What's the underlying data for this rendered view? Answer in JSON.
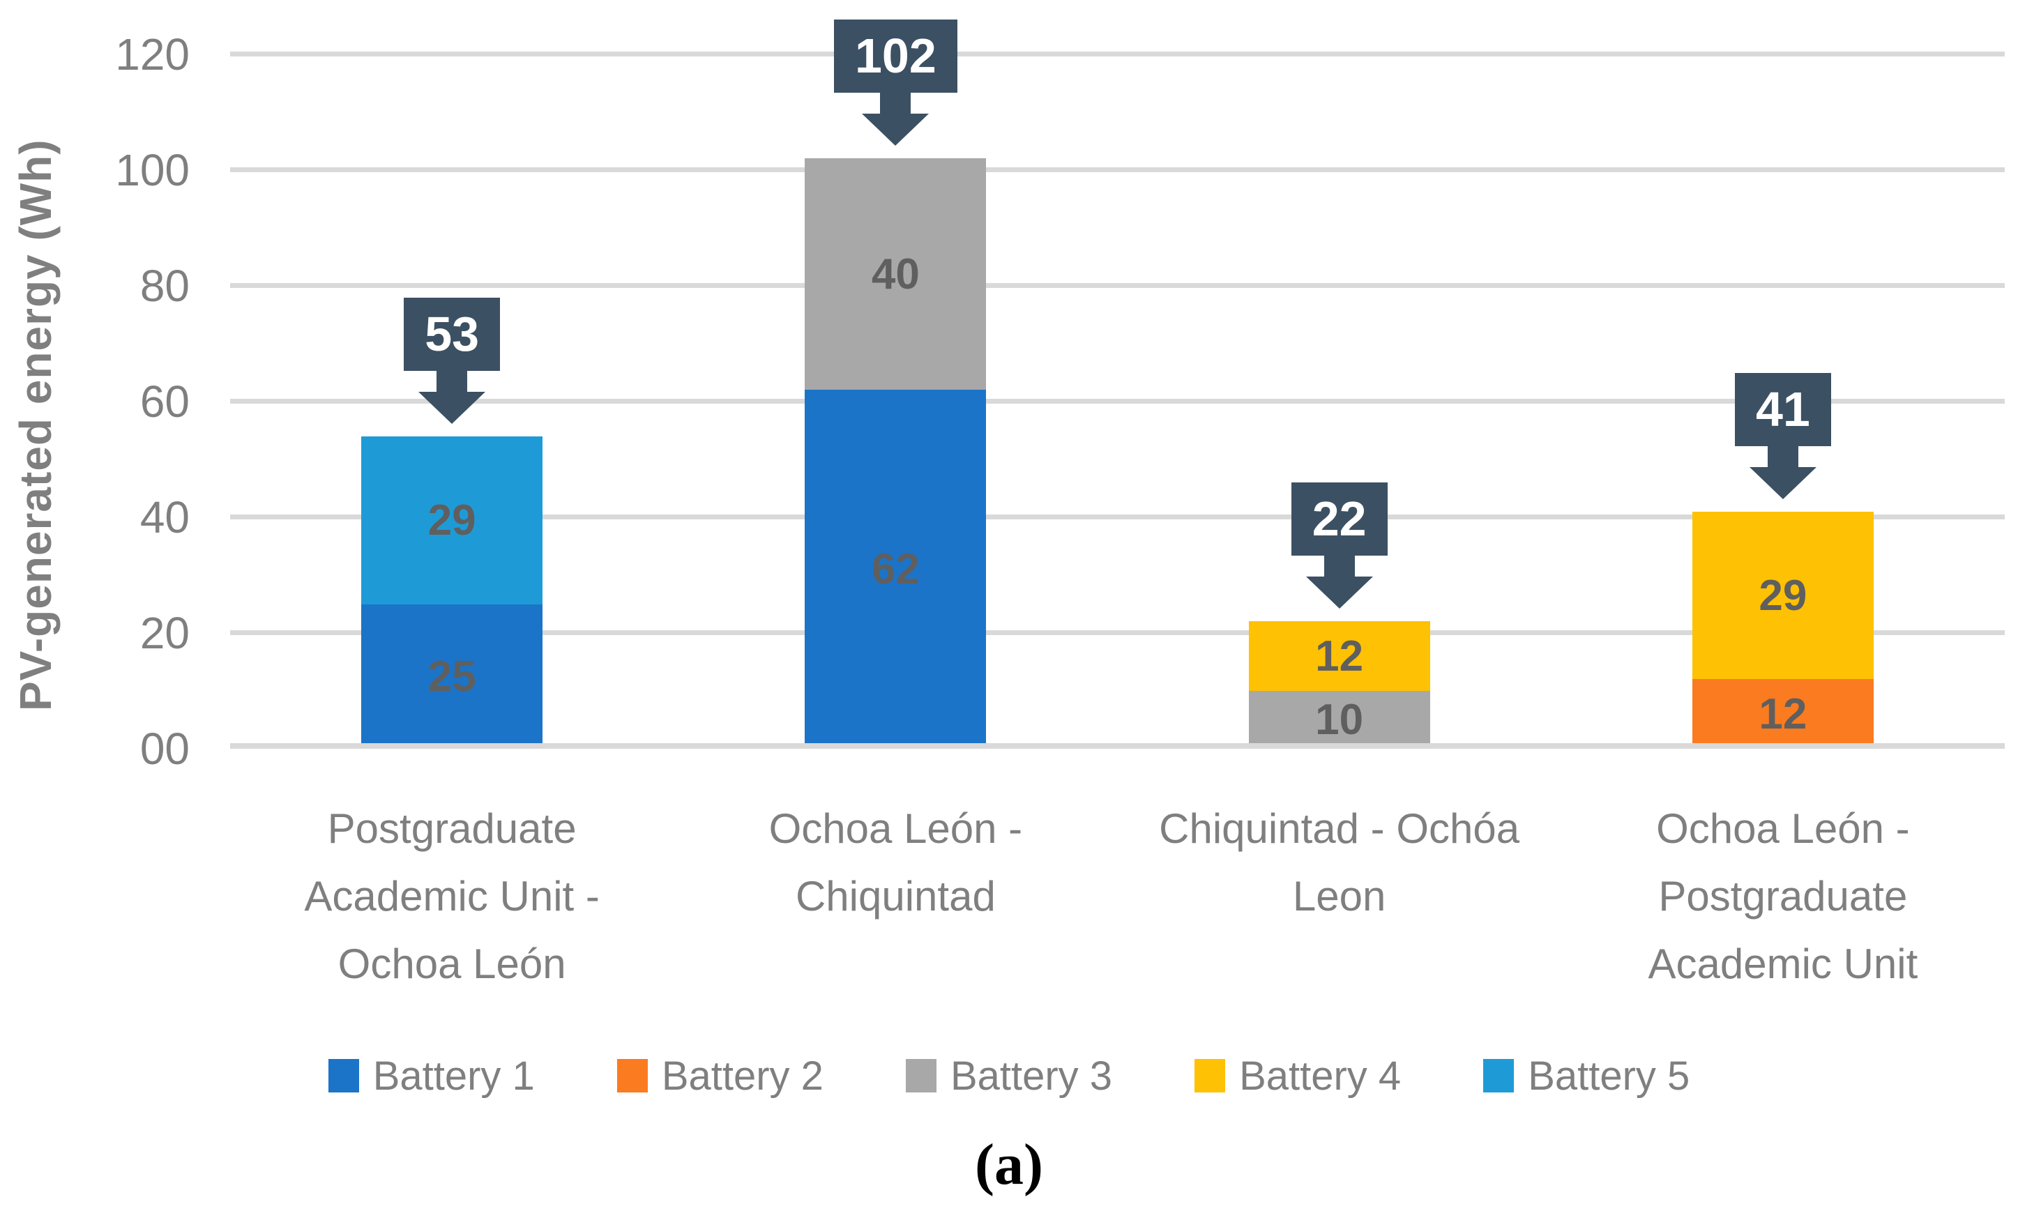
{
  "figure": {
    "caption": "(a)"
  },
  "chart_data": {
    "type": "bar",
    "stacked": true,
    "title": "",
    "xlabel": "",
    "ylabel": "PV-generated energy (Wh)",
    "ylim": [
      0,
      120
    ],
    "grid": true,
    "legend_position": "bottom",
    "y_axis": {
      "tick_values": [
        0,
        20,
        40,
        60,
        80,
        100,
        120
      ],
      "tick_labels": [
        "00",
        "20",
        "40",
        "60",
        "80",
        "100",
        "120"
      ]
    },
    "categories": [
      "Postgraduate Academic Unit - Ochoa León",
      "Ochoa León - Chiquintad",
      "Chiquintad - Ochóa Leon",
      "Ochoa León - Postgraduate Academic Unit"
    ],
    "series": [
      {
        "name": "Battery 1",
        "color": "#1B74C8",
        "values": [
          25,
          62,
          0,
          0
        ]
      },
      {
        "name": "Battery 2",
        "color": "#FB7B20",
        "values": [
          0,
          0,
          0,
          12
        ]
      },
      {
        "name": "Battery 3",
        "color": "#A8A8A8",
        "values": [
          0,
          40,
          10,
          0
        ]
      },
      {
        "name": "Battery 4",
        "color": "#FFC103",
        "values": [
          0,
          0,
          12,
          29
        ]
      },
      {
        "name": "Battery 5",
        "color": "#1E9BD7",
        "values": [
          29,
          0,
          0,
          0
        ]
      }
    ],
    "bars": [
      {
        "category": "Postgraduate Academic Unit - Ochoa León",
        "label_lines": [
          "Postgraduate",
          "Academic Unit -",
          "Ochoa León"
        ],
        "segments": [
          {
            "series": "Battery 1",
            "value": 25
          },
          {
            "series": "Battery 5",
            "value": 29
          }
        ],
        "total": 53
      },
      {
        "category": "Ochoa León - Chiquintad",
        "label_lines": [
          "Ochoa León -",
          "Chiquintad"
        ],
        "segments": [
          {
            "series": "Battery 1",
            "value": 62
          },
          {
            "series": "Battery 3",
            "value": 40
          }
        ],
        "total": 102
      },
      {
        "category": "Chiquintad - Ochóa Leon",
        "label_lines": [
          "Chiquintad - Ochóa",
          "Leon"
        ],
        "segments": [
          {
            "series": "Battery 3",
            "value": 10
          },
          {
            "series": "Battery 4",
            "value": 12
          }
        ],
        "total": 22
      },
      {
        "category": "Ochoa León - Postgraduate Academic Unit",
        "label_lines": [
          "Ochoa León -",
          "Postgraduate",
          "Academic Unit"
        ],
        "segments": [
          {
            "series": "Battery 2",
            "value": 12
          },
          {
            "series": "Battery 4",
            "value": 29
          }
        ],
        "total": 41
      }
    ],
    "colors": {
      "grid": "#D9D9D9",
      "axis_text": "#7F7F7F",
      "segment_label": "#5F5F5F",
      "callout_bg": "#3C5063",
      "callout_text": "#FFFFFF"
    }
  },
  "legend": {
    "items": [
      {
        "label": "Battery 1",
        "color": "#1B74C8"
      },
      {
        "label": "Battery 2",
        "color": "#FB7B20"
      },
      {
        "label": "Battery 3",
        "color": "#A8A8A8"
      },
      {
        "label": "Battery 4",
        "color": "#FFC103"
      },
      {
        "label": "Battery 5",
        "color": "#1E9BD7"
      }
    ]
  }
}
